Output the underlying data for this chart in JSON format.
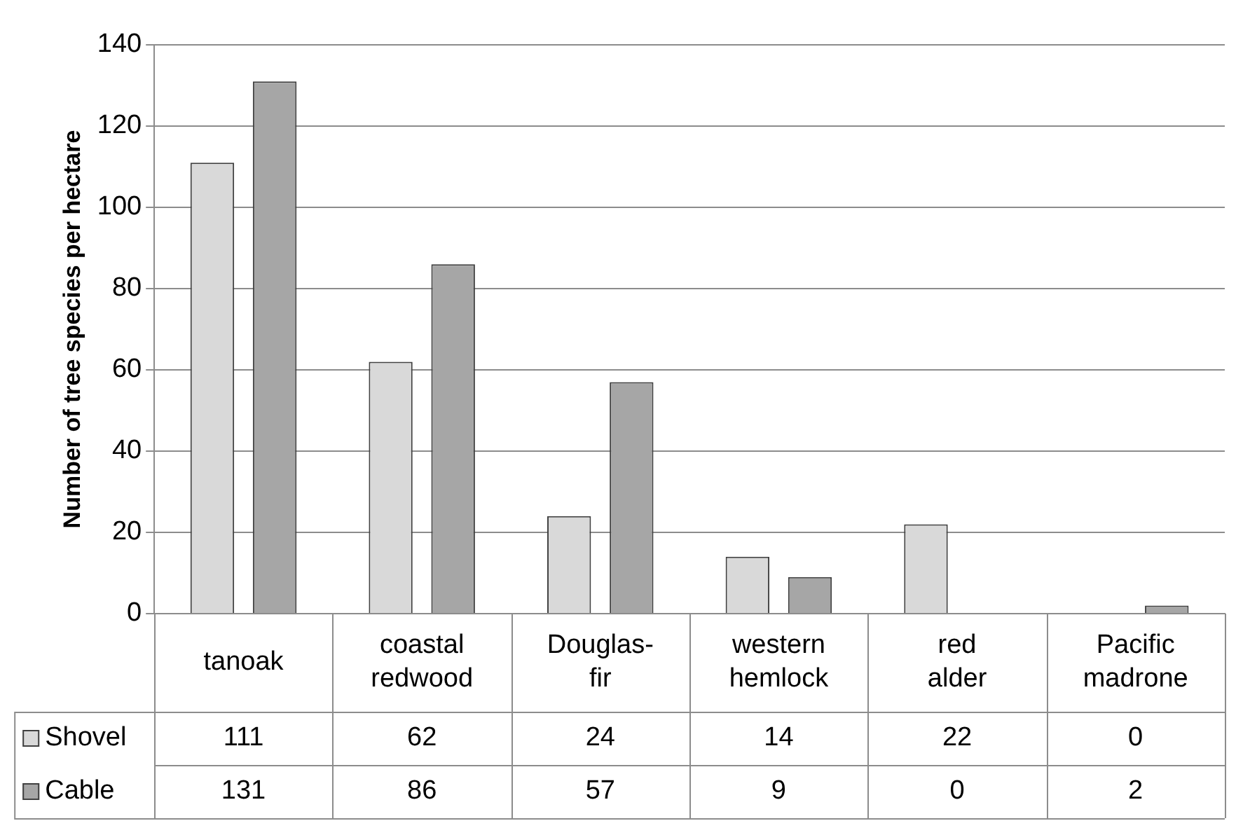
{
  "chart_data": {
    "type": "bar",
    "ylabel": "Number of tree species per hectare",
    "categories": [
      "tanoak",
      "coastal redwood",
      "Douglas-fir",
      "western hemlock",
      "red alder",
      "Pacific madrone"
    ],
    "series": [
      {
        "name": "Shovel",
        "color": "#d9d9d9",
        "values": [
          111,
          62,
          24,
          14,
          22,
          0
        ]
      },
      {
        "name": "Cable",
        "color": "#a6a6a6",
        "values": [
          131,
          86,
          57,
          9,
          0,
          2
        ]
      }
    ],
    "ylim": [
      0,
      140
    ],
    "yticks": [
      0,
      20,
      40,
      60,
      80,
      100,
      120,
      140
    ],
    "grid": "y",
    "legend": "bottom",
    "data_labels": true
  }
}
